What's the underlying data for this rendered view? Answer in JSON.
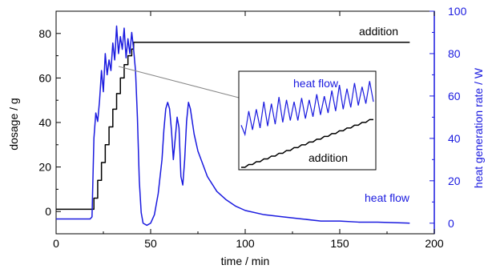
{
  "chart_data": {
    "type": "line",
    "xlabel": "time / min",
    "ylabel_left": "dosage / g",
    "ylabel_right": "heat generation rate / W",
    "xlim": [
      0,
      200
    ],
    "ylim_left": [
      -10,
      90
    ],
    "ylim_right": [
      -5,
      100
    ],
    "x_ticks": [
      0,
      50,
      100,
      150,
      200
    ],
    "y_left_ticks": [
      0,
      20,
      40,
      60,
      80
    ],
    "y_right_ticks": [
      0,
      20,
      40,
      60,
      80,
      100
    ],
    "grid": false,
    "legend": "none",
    "series": [
      {
        "name": "addition",
        "axis": "left",
        "color": "#000000",
        "x": [
          0,
          19,
          20,
          22,
          24,
          26,
          28,
          30,
          32,
          34,
          36,
          38,
          40,
          41,
          42,
          60,
          100,
          150,
          187
        ],
        "y": [
          1,
          1,
          6,
          14,
          22,
          30,
          38,
          46,
          53,
          60,
          66,
          70,
          73,
          76,
          76,
          76,
          76,
          76,
          76
        ]
      },
      {
        "name": "heat flow",
        "axis": "right",
        "color": "#1a1adf",
        "x": [
          0,
          18,
          19,
          20,
          21,
          22,
          23,
          24,
          25,
          26,
          27,
          28,
          29,
          30,
          31,
          32,
          33,
          34,
          35,
          36,
          37,
          38,
          39,
          40,
          41,
          42,
          43,
          44,
          45,
          46,
          48,
          50,
          52,
          54,
          56,
          57,
          58,
          59,
          60,
          61,
          62,
          63,
          64,
          65,
          66,
          67,
          68,
          69,
          70,
          71,
          72,
          73,
          75,
          80,
          85,
          90,
          95,
          100,
          110,
          120,
          130,
          140,
          150,
          160,
          170,
          187
        ],
        "y": [
          2,
          2,
          3,
          40,
          52,
          48,
          58,
          72,
          62,
          80,
          70,
          77,
          72,
          85,
          77,
          93,
          80,
          88,
          82,
          92,
          78,
          87,
          80,
          90,
          82,
          72,
          50,
          20,
          5,
          0,
          -1,
          0,
          4,
          14,
          30,
          44,
          54,
          57,
          54,
          44,
          30,
          40,
          50,
          45,
          22,
          18,
          30,
          48,
          57,
          54,
          48,
          42,
          34,
          22,
          15,
          11,
          8,
          6,
          4,
          3,
          2,
          1,
          1,
          0.5,
          0.5,
          0
        ]
      }
    ],
    "annotations": {
      "addition_top": "addition",
      "heat_flow_main": "heat flow",
      "inset_heat_flow": "heat flow",
      "inset_addition": "addition"
    },
    "inset": {
      "addition_y": [
        0,
        0,
        3,
        3,
        6,
        6,
        9,
        9,
        12,
        12,
        15,
        15,
        18,
        18,
        21,
        21,
        24,
        24,
        27,
        27,
        30,
        30,
        33,
        33,
        36,
        36,
        39,
        39,
        42,
        42,
        45,
        45,
        48,
        48,
        51,
        51
      ],
      "heat_flow_y": [
        45,
        35,
        60,
        40,
        62,
        42,
        70,
        44,
        68,
        46,
        75,
        48,
        72,
        50,
        70,
        50,
        74,
        52,
        72,
        54,
        78,
        56,
        76,
        58,
        82,
        60,
        88,
        62,
        84,
        64,
        90,
        66,
        86,
        68,
        92,
        70
      ]
    }
  }
}
